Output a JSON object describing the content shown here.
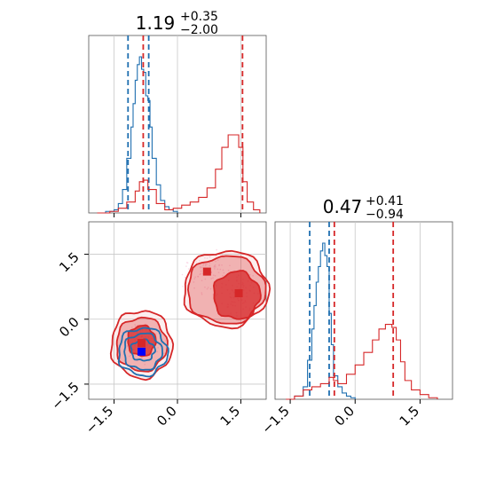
{
  "chart_data": [
    {
      "type": "histogram",
      "panel": "marginal-param-1",
      "title": {
        "value": "1.19",
        "plus": "+0.35",
        "minus": "−2.00"
      },
      "xlim": [
        -2.1,
        2.1
      ],
      "grid": true,
      "series": [
        {
          "color": "#1f6fb0",
          "x": [
            -1.9,
            -1.7,
            -1.5,
            -1.4,
            -1.3,
            -1.2,
            -1.1,
            -1.05,
            -1.0,
            -0.95,
            -0.9,
            -0.85,
            -0.8,
            -0.75,
            -0.7,
            -0.65,
            -0.6,
            -0.5,
            -0.4,
            -0.3,
            -0.2,
            -0.1,
            0.0
          ],
          "values": [
            0,
            0.01,
            0.02,
            0.06,
            0.15,
            0.35,
            0.55,
            0.7,
            0.85,
            0.95,
            1.0,
            0.92,
            0.9,
            0.75,
            0.72,
            0.55,
            0.35,
            0.18,
            0.08,
            0.04,
            0.02,
            0.01,
            0
          ],
          "quantiles": [
            -1.17,
            -0.68
          ]
        },
        {
          "color": "#d62728",
          "x": [
            -1.9,
            -1.6,
            -1.4,
            -1.2,
            -1.0,
            -0.9,
            -0.8,
            -0.7,
            -0.5,
            -0.3,
            -0.1,
            0.1,
            0.3,
            0.5,
            0.7,
            0.9,
            1.05,
            1.2,
            1.35,
            1.45,
            1.55,
            1.65,
            1.8,
            1.95
          ],
          "values": [
            0,
            0.01,
            0.03,
            0.07,
            0.14,
            0.2,
            0.21,
            0.15,
            0.06,
            0.02,
            0.03,
            0.05,
            0.07,
            0.1,
            0.16,
            0.28,
            0.42,
            0.5,
            0.5,
            0.42,
            0.2,
            0.07,
            0.02,
            0
          ],
          "quantiles": [
            -0.81,
            1.54
          ]
        }
      ]
    },
    {
      "type": "contour",
      "panel": "joint-param-1-vs-param-2",
      "xlim": [
        -2.1,
        2.1
      ],
      "ylim": [
        -1.85,
        2.25
      ],
      "xticks": [
        "−1.5",
        "0.0",
        "1.5"
      ],
      "yticks": [
        "−1.5",
        "0.0",
        "1.5"
      ],
      "grid": true,
      "series": [
        {
          "color": "#d62728",
          "modes": [
            [
              -0.85,
              -0.55
            ],
            [
              0.7,
              1.1
            ],
            [
              1.45,
              0.6
            ]
          ],
          "marker_points": [
            [
              -0.85,
              -0.55
            ],
            [
              0.7,
              1.1
            ],
            [
              1.45,
              0.6
            ]
          ]
        },
        {
          "color": "#1f6fb0",
          "modes": [
            [
              -0.85,
              -0.75
            ]
          ],
          "marker_points": [
            [
              -0.85,
              -0.75
            ]
          ]
        }
      ]
    },
    {
      "type": "histogram",
      "panel": "marginal-param-2",
      "title": {
        "value": "0.47",
        "plus": "+0.41",
        "minus": "−0.94"
      },
      "xlim": [
        -1.85,
        2.25
      ],
      "xticks": [
        "−1.5",
        "0.0",
        "1.5"
      ],
      "grid": true,
      "series": [
        {
          "color": "#1f6fb0",
          "x": [
            -1.6,
            -1.4,
            -1.2,
            -1.1,
            -1.0,
            -0.95,
            -0.9,
            -0.85,
            -0.8,
            -0.75,
            -0.7,
            -0.65,
            -0.6,
            -0.55,
            -0.5,
            -0.4,
            -0.3,
            -0.2,
            -0.1,
            0.0
          ],
          "values": [
            0,
            0.02,
            0.08,
            0.25,
            0.45,
            0.6,
            0.75,
            0.85,
            0.95,
            1.0,
            0.92,
            0.85,
            0.55,
            0.35,
            0.15,
            0.08,
            0.04,
            0.02,
            0.01,
            0
          ],
          "quantiles": [
            -1.05,
            -0.6
          ]
        },
        {
          "color": "#d62728",
          "x": [
            -1.6,
            -1.4,
            -1.2,
            -1.0,
            -0.8,
            -0.6,
            -0.5,
            -0.4,
            -0.2,
            0.0,
            0.2,
            0.4,
            0.55,
            0.7,
            0.85,
            0.95,
            1.05,
            1.15,
            1.3,
            1.5,
            1.7,
            1.9
          ],
          "values": [
            0,
            0.02,
            0.06,
            0.08,
            0.1,
            0.14,
            0.12,
            0.1,
            0.16,
            0.22,
            0.3,
            0.38,
            0.45,
            0.48,
            0.46,
            0.38,
            0.24,
            0.12,
            0.06,
            0.03,
            0.01,
            0
          ],
          "quantiles": [
            -0.48,
            0.88
          ]
        }
      ]
    }
  ]
}
